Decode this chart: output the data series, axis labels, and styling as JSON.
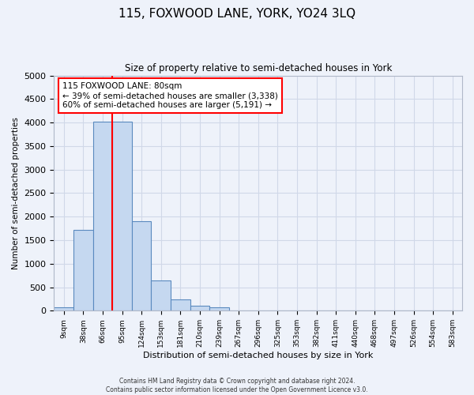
{
  "title": "115, FOXWOOD LANE, YORK, YO24 3LQ",
  "subtitle": "Size of property relative to semi-detached houses in York",
  "xlabel": "Distribution of semi-detached houses by size in York",
  "ylabel": "Number of semi-detached properties",
  "bar_labels": [
    "9sqm",
    "38sqm",
    "66sqm",
    "95sqm",
    "124sqm",
    "153sqm",
    "181sqm",
    "210sqm",
    "239sqm",
    "267sqm",
    "296sqm",
    "325sqm",
    "353sqm",
    "382sqm",
    "411sqm",
    "440sqm",
    "468sqm",
    "497sqm",
    "526sqm",
    "554sqm",
    "583sqm"
  ],
  "bar_values": [
    70,
    1720,
    4020,
    4020,
    1910,
    650,
    240,
    100,
    65,
    0,
    0,
    0,
    0,
    0,
    0,
    0,
    0,
    0,
    0,
    0,
    0
  ],
  "bar_color": "#c5d8f0",
  "bar_edge_color": "#5a8abf",
  "ylim": [
    0,
    5000
  ],
  "property_line_x": 2.5,
  "annotation_text": "115 FOXWOOD LANE: 80sqm\n← 39% of semi-detached houses are smaller (3,338)\n60% of semi-detached houses are larger (5,191) →",
  "annotation_box_color": "white",
  "annotation_box_edge": "red",
  "red_line_color": "red",
  "background_color": "#eef2fa",
  "plot_background": "#eef2fa",
  "grid_color": "#d0d8e8",
  "footer": "Contains HM Land Registry data © Crown copyright and database right 2024.\nContains public sector information licensed under the Open Government Licence v3.0."
}
